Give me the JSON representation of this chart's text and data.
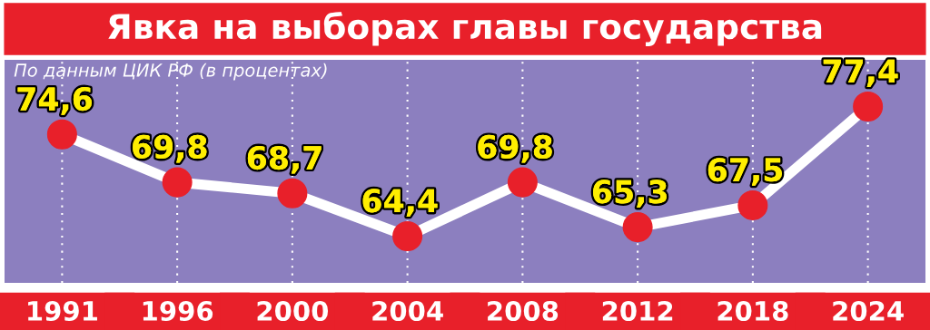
{
  "chart_data": {
    "type": "line",
    "title": "Явка на выборах главы государства",
    "subtitle": "По данным ЦИК РФ (в процентах)",
    "categories": [
      "1991",
      "1996",
      "2000",
      "2004",
      "2008",
      "2012",
      "2018",
      "2024"
    ],
    "series": [
      {
        "color": "#ffffff",
        "values": [
          74.6,
          69.8,
          68.7,
          64.4,
          69.8,
          65.3,
          67.5,
          77.4
        ],
        "value_labels": [
          "74,6",
          "69,8",
          "68,7",
          "64,4",
          "69,8",
          "65,3",
          "67,5",
          "77,4"
        ]
      }
    ],
    "tick_labels": "x",
    "grid": "x",
    "marker": "circle",
    "line_style": "solid",
    "legend": false
  }
}
